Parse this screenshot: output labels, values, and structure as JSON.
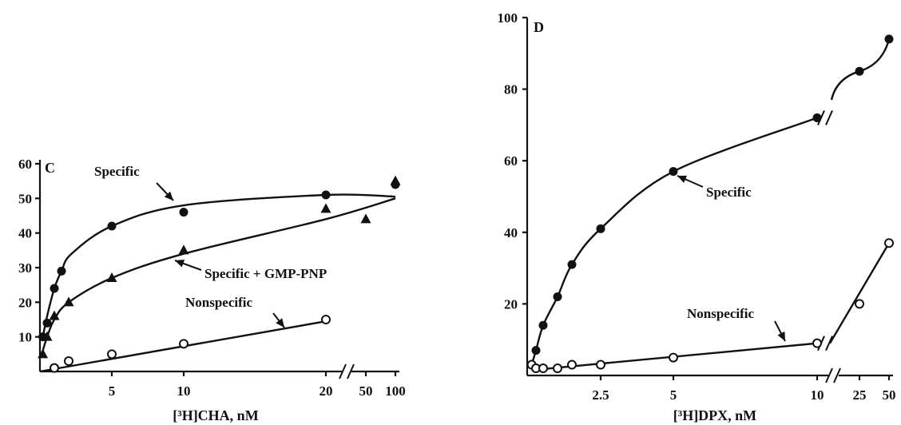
{
  "chart_data": [
    {
      "panel": "C",
      "type": "scatter",
      "xlabel": "[³H]CHA, nM",
      "ylabel": "",
      "ylim": [
        0,
        60
      ],
      "x_ticks": [
        "5",
        "10",
        "20",
        "50",
        "100"
      ],
      "y_ticks": [
        "10",
        "20",
        "30",
        "40",
        "50",
        "60"
      ],
      "x_axis_break": "between 20 and 50",
      "series": [
        {
          "name": "Specific",
          "marker": "filled-circle",
          "x": [
            0.2,
            0.5,
            1,
            1.5,
            5,
            10,
            20,
            100
          ],
          "y": [
            10,
            14,
            24,
            29,
            42,
            46,
            51,
            54
          ]
        },
        {
          "name": "Specific + GMP-PNP",
          "marker": "filled-triangle",
          "x": [
            0.2,
            0.5,
            1,
            2,
            5,
            10,
            20,
            50,
            100
          ],
          "y": [
            5,
            10,
            16,
            20,
            27,
            35,
            47,
            44,
            55
          ]
        },
        {
          "name": "Nonspecific",
          "marker": "open-circle",
          "x": [
            1,
            2,
            5,
            10,
            20
          ],
          "y": [
            1,
            3,
            5,
            8,
            15
          ]
        }
      ],
      "annotations": [
        "Specific",
        "Specific + GMP-PNP",
        "Nonspecific"
      ]
    },
    {
      "panel": "D",
      "type": "scatter",
      "xlabel": "[³H]DPX, nM",
      "ylabel": "",
      "ylim": [
        0,
        100
      ],
      "x_ticks": [
        "2.5",
        "5",
        "10",
        "25",
        "50"
      ],
      "y_ticks": [
        "20",
        "40",
        "60",
        "80",
        "100"
      ],
      "x_axis_break": "between 10 and 25",
      "series": [
        {
          "name": "Specific",
          "marker": "filled-circle",
          "x": [
            0.1,
            0.25,
            0.5,
            1.0,
            1.5,
            2.5,
            5,
            10,
            25,
            50
          ],
          "y": [
            3,
            7,
            14,
            22,
            31,
            41,
            57,
            72,
            85,
            94
          ]
        },
        {
          "name": "Nonspecific",
          "marker": "open-circle",
          "x": [
            0.1,
            0.25,
            0.5,
            1.0,
            1.5,
            2.5,
            5,
            10,
            25,
            50
          ],
          "y": [
            3,
            2,
            2,
            2,
            3,
            3,
            5,
            9,
            20,
            37
          ]
        }
      ],
      "annotations": [
        "Specific",
        "Nonspecific"
      ]
    }
  ]
}
